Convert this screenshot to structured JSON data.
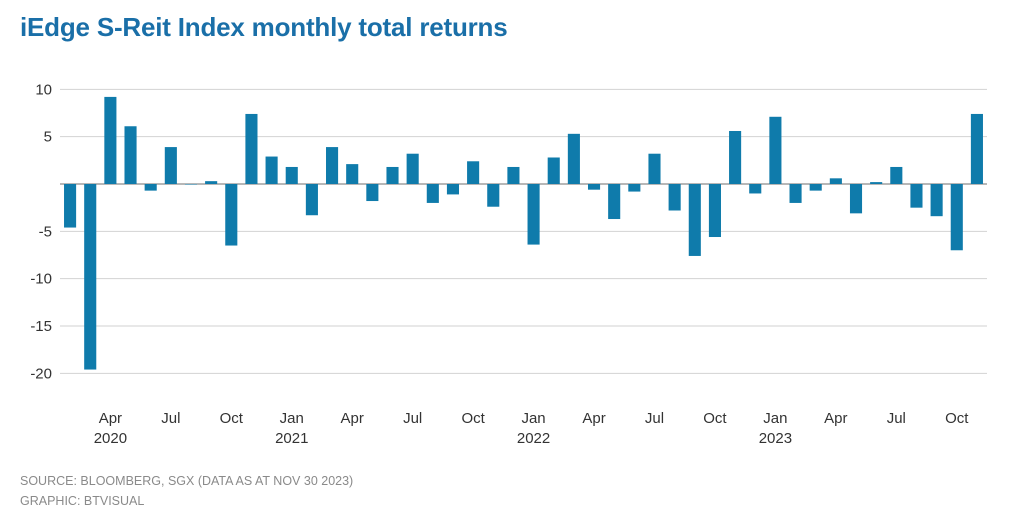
{
  "chart_data": {
    "type": "bar",
    "title": "iEdge S-Reit Index monthly total returns",
    "xlabel": "",
    "ylabel": "",
    "ylim": [
      -20,
      10
    ],
    "yticks": [
      10,
      5,
      -5,
      -10,
      -15,
      -20
    ],
    "grid": true,
    "color": "#0f7bab",
    "start": "2020-02",
    "values": [
      -4.6,
      -19.6,
      9.2,
      6.1,
      -0.7,
      3.9,
      0.0,
      0.3,
      -6.5,
      7.4,
      2.9,
      1.8,
      -3.3,
      3.9,
      2.1,
      -1.8,
      1.8,
      3.2,
      -2.0,
      -1.1,
      2.4,
      -2.4,
      1.8,
      -6.4,
      2.8,
      5.3,
      -0.6,
      -3.7,
      -0.8,
      3.2,
      -2.8,
      -7.6,
      -5.6,
      5.6,
      -1.0,
      7.1,
      -2.0,
      -0.7,
      0.6,
      -3.1,
      0.2,
      1.8,
      -2.5,
      -3.4,
      -7.0,
      7.4
    ],
    "xticks": [
      {
        "index": 2,
        "label": "Apr",
        "year": "2020"
      },
      {
        "index": 5,
        "label": "Jul",
        "year": ""
      },
      {
        "index": 8,
        "label": "Oct",
        "year": ""
      },
      {
        "index": 11,
        "label": "Jan",
        "year": "2021"
      },
      {
        "index": 14,
        "label": "Apr",
        "year": ""
      },
      {
        "index": 17,
        "label": "Jul",
        "year": ""
      },
      {
        "index": 20,
        "label": "Oct",
        "year": ""
      },
      {
        "index": 23,
        "label": "Jan",
        "year": "2022"
      },
      {
        "index": 26,
        "label": "Apr",
        "year": ""
      },
      {
        "index": 29,
        "label": "Jul",
        "year": ""
      },
      {
        "index": 32,
        "label": "Oct",
        "year": ""
      },
      {
        "index": 35,
        "label": "Jan",
        "year": "2023"
      },
      {
        "index": 38,
        "label": "Apr",
        "year": ""
      },
      {
        "index": 41,
        "label": "Jul",
        "year": ""
      },
      {
        "index": 44,
        "label": "Oct",
        "year": ""
      }
    ]
  },
  "footer": {
    "source": "SOURCE: BLOOMBERG, SGX (DATA AS AT NOV 30 2023)",
    "graphic": "GRAPHIC: BTVISUAL"
  }
}
